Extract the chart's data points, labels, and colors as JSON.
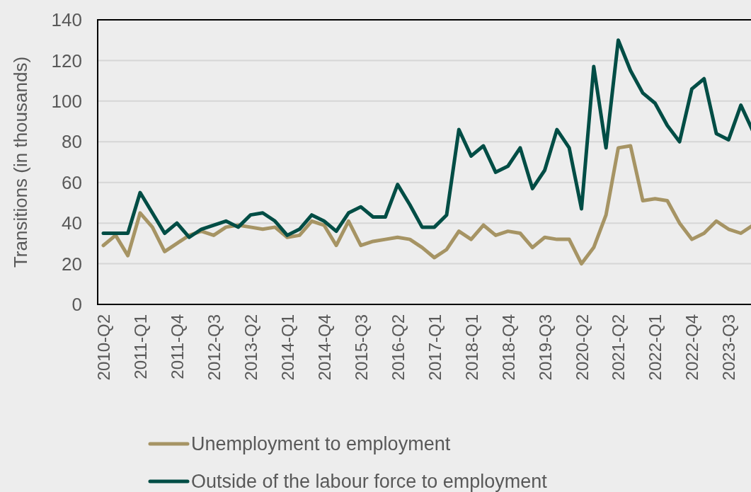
{
  "chart_data": {
    "type": "line",
    "ylabel": "Transitions (in thousands)",
    "categories": [
      "2010-Q2",
      null,
      null,
      "2011-Q1",
      null,
      null,
      "2011-Q4",
      null,
      null,
      "2012-Q3",
      null,
      null,
      "2013-Q2",
      null,
      null,
      "2014-Q1",
      null,
      null,
      "2014-Q4",
      null,
      null,
      "2015-Q3",
      null,
      null,
      "2016-Q2",
      null,
      null,
      "2017-Q1",
      null,
      null,
      "2018-Q1",
      null,
      null,
      "2018-Q4",
      null,
      null,
      "2019-Q3",
      null,
      null,
      "2020-Q2",
      null,
      null,
      "2021-Q2",
      null,
      null,
      "2022-Q1",
      null,
      null,
      "2022-Q4",
      null,
      null,
      "2023-Q3",
      null,
      null
    ],
    "series": [
      {
        "name": "Unemployment to employment",
        "color": "#a69464",
        "values": [
          29,
          34,
          24,
          45,
          38,
          26,
          30,
          34,
          36,
          34,
          38,
          39,
          38,
          37,
          38,
          33,
          34,
          41,
          39,
          29,
          41,
          29,
          31,
          32,
          33,
          32,
          28,
          23,
          27,
          36,
          32,
          39,
          34,
          36,
          35,
          28,
          33,
          32,
          32,
          20,
          28,
          44,
          77,
          78,
          51,
          52,
          51,
          40,
          32,
          35,
          41,
          37,
          35,
          39
        ]
      },
      {
        "name": "Outside of the labour force to employment",
        "color": "#004d45",
        "values": [
          35,
          35,
          35,
          55,
          45,
          35,
          40,
          33,
          37,
          39,
          41,
          38,
          44,
          45,
          41,
          34,
          37,
          44,
          41,
          36,
          45,
          48,
          43,
          43,
          59,
          49,
          38,
          38,
          44,
          86,
          73,
          78,
          65,
          68,
          77,
          57,
          66,
          86,
          77,
          47,
          117,
          77,
          130,
          115,
          104,
          99,
          88,
          80,
          106,
          111,
          84,
          81,
          98,
          85
        ]
      }
    ],
    "ylim": [
      0,
      140
    ],
    "yticks": [
      0,
      20,
      40,
      60,
      80,
      100,
      120,
      140
    ],
    "grid": "y",
    "legend": "bottom",
    "line_style": "solid",
    "marker": "none"
  }
}
